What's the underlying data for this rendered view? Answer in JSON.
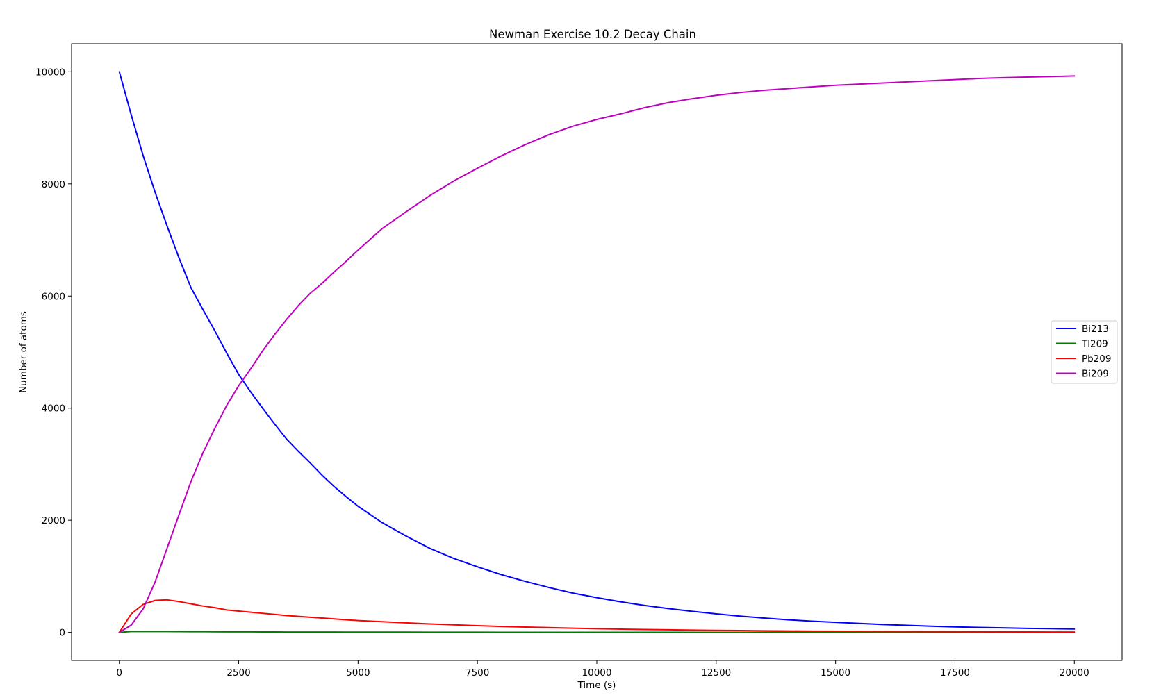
{
  "chart_data": {
    "type": "line",
    "title": "Newman Exercise 10.2 Decay Chain",
    "xlabel": "Time (s)",
    "ylabel": "Number of atoms",
    "xlim": [
      -1000,
      21000
    ],
    "ylim": [
      -500,
      10500
    ],
    "xticks": [
      0,
      2500,
      5000,
      7500,
      10000,
      12500,
      15000,
      17500,
      20000
    ],
    "xtick_labels": [
      "0",
      "2500",
      "5000",
      "7500",
      "10000",
      "12500",
      "15000",
      "17500",
      "20000"
    ],
    "yticks": [
      0,
      2000,
      4000,
      6000,
      8000,
      10000
    ],
    "ytick_labels": [
      "0",
      "2000",
      "4000",
      "6000",
      "8000",
      "10000"
    ],
    "grid": false,
    "legend_position": "center-right",
    "x": [
      0,
      250,
      500,
      750,
      1000,
      1250,
      1500,
      1750,
      2000,
      2250,
      2500,
      2750,
      3000,
      3250,
      3500,
      3750,
      4000,
      4250,
      4500,
      4750,
      5000,
      5500,
      6000,
      6500,
      7000,
      7500,
      8000,
      8500,
      9000,
      9500,
      10000,
      10500,
      11000,
      11500,
      12000,
      12500,
      13000,
      13500,
      14000,
      14500,
      15000,
      15500,
      16000,
      16500,
      17000,
      17500,
      18000,
      18500,
      19000,
      19500,
      20000
    ],
    "series": [
      {
        "name": "Bi213",
        "color": "#0000ff",
        "values": [
          10000,
          9230,
          8500,
          7850,
          7250,
          6680,
          6150,
          5760,
          5380,
          4980,
          4600,
          4290,
          4000,
          3720,
          3450,
          3230,
          3020,
          2800,
          2600,
          2420,
          2250,
          1960,
          1720,
          1500,
          1320,
          1170,
          1030,
          910,
          800,
          700,
          620,
          545,
          480,
          425,
          375,
          330,
          290,
          255,
          225,
          200,
          180,
          160,
          140,
          125,
          110,
          98,
          88,
          80,
          72,
          66,
          60
        ]
      },
      {
        "name": "Tl209",
        "color": "#008000",
        "values": [
          0,
          15,
          16,
          16,
          15,
          14,
          13,
          12,
          11,
          10,
          9,
          9,
          8,
          8,
          7,
          7,
          6,
          6,
          6,
          5,
          5,
          4,
          4,
          3,
          3,
          3,
          2,
          2,
          2,
          2,
          2,
          1,
          1,
          1,
          1,
          1,
          1,
          1,
          1,
          1,
          1,
          0,
          0,
          0,
          0,
          0,
          0,
          0,
          0,
          0,
          0
        ]
      },
      {
        "name": "Pb209",
        "color": "#ff0000",
        "values": [
          0,
          330,
          500,
          570,
          580,
          550,
          510,
          470,
          440,
          400,
          380,
          360,
          340,
          320,
          300,
          285,
          270,
          255,
          240,
          225,
          210,
          190,
          170,
          150,
          135,
          120,
          105,
          95,
          85,
          75,
          65,
          58,
          52,
          46,
          40,
          36,
          32,
          28,
          25,
          22,
          20,
          18,
          16,
          14,
          12,
          11,
          10,
          9,
          8,
          7,
          6
        ]
      },
      {
        "name": "Bi209",
        "color": "#bf00bf",
        "values": [
          0,
          130,
          420,
          900,
          1500,
          2100,
          2690,
          3200,
          3640,
          4050,
          4400,
          4700,
          5020,
          5310,
          5580,
          5830,
          6050,
          6230,
          6430,
          6620,
          6820,
          7200,
          7500,
          7790,
          8050,
          8280,
          8500,
          8700,
          8880,
          9030,
          9150,
          9250,
          9360,
          9450,
          9520,
          9580,
          9630,
          9670,
          9700,
          9730,
          9760,
          9780,
          9800,
          9820,
          9840,
          9860,
          9880,
          9895,
          9905,
          9915,
          9925
        ]
      }
    ]
  }
}
